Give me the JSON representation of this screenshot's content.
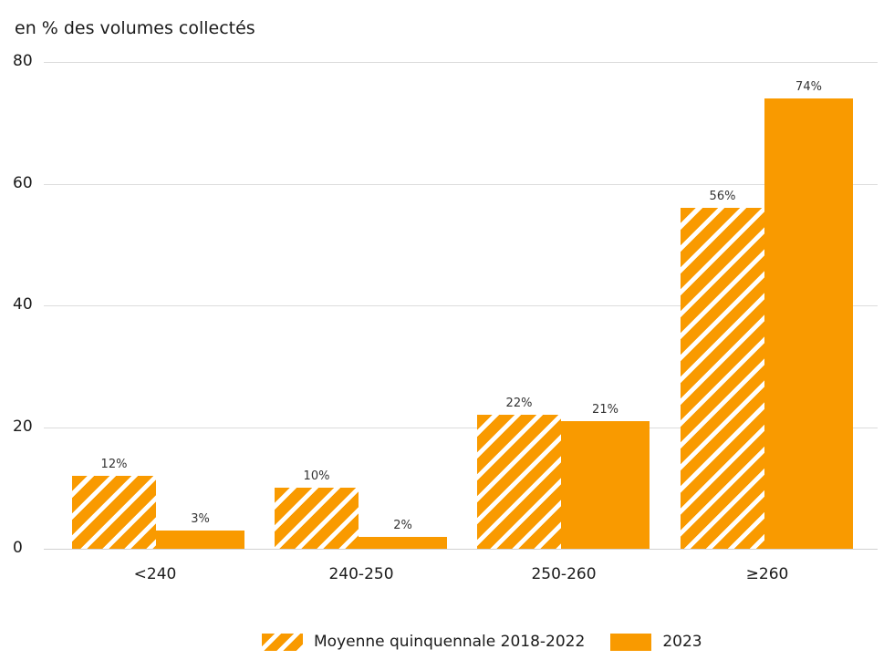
{
  "chart_data": {
    "type": "bar",
    "title": "",
    "ylabel": "en % des volumes collectés",
    "xlabel": "",
    "ylim": [
      0,
      80
    ],
    "yticks": [
      0,
      20,
      40,
      60,
      80
    ],
    "grid": true,
    "legend_position": "bottom",
    "categories": [
      "<240",
      "240-250",
      "250-260",
      "≥260"
    ],
    "series": [
      {
        "name": "Moyenne quinquennale 2018-2022",
        "values": [
          12,
          10,
          22,
          56
        ],
        "labels": [
          "12%",
          "10%",
          "22%",
          "56%"
        ],
        "style": "hatched",
        "color": "#f99a00"
      },
      {
        "name": "2023",
        "values": [
          3,
          2,
          21,
          74
        ],
        "labels": [
          "3%",
          "2%",
          "21%",
          "74%"
        ],
        "style": "solid",
        "color": "#f99a00"
      }
    ]
  },
  "axis": {
    "title": "en % des volumes collectés",
    "ticks": [
      "80",
      "60",
      "40",
      "20",
      "0"
    ]
  },
  "legend": {
    "items": [
      "Moyenne quinquennale 2018-2022",
      "2023"
    ]
  }
}
